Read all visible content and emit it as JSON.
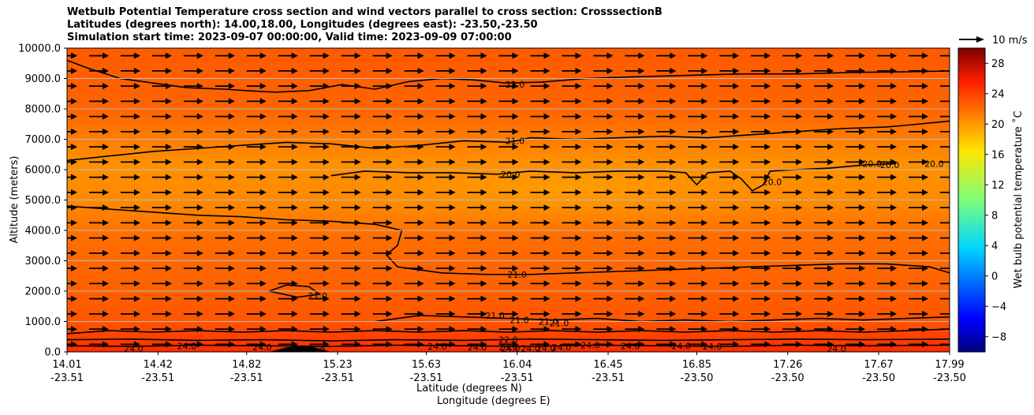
{
  "title_lines": [
    "Wetbulb Potential Temperature cross section and wind vectors parallel to cross section: CrosssectionB",
    "Latitudes (degrees north): 14.00,18.00, Longitudes (degrees east): -23.50,-23.50",
    "Simulation start time: 2023-09-07 00:00:00, Valid time: 2023-09-09 07:00:00"
  ],
  "chart_data": {
    "type": "heatmap",
    "subtype": "cross-section contour with quiver",
    "xlabel": "Latitude (degrees N)",
    "xlabel2": "Longitude (degrees E)",
    "ylabel": "Altitude (meters)",
    "ylim": [
      0,
      10000
    ],
    "xlim": [
      14.01,
      17.99
    ],
    "x_ticks": [
      {
        "lat": "14.01",
        "lon": "-23.51"
      },
      {
        "lat": "14.42",
        "lon": "-23.51"
      },
      {
        "lat": "14.82",
        "lon": "-23.51"
      },
      {
        "lat": "15.23",
        "lon": "-23.51"
      },
      {
        "lat": "15.63",
        "lon": "-23.51"
      },
      {
        "lat": "16.04",
        "lon": "-23.51"
      },
      {
        "lat": "16.45",
        "lon": "-23.51"
      },
      {
        "lat": "16.85",
        "lon": "-23.50"
      },
      {
        "lat": "17.26",
        "lon": "-23.50"
      },
      {
        "lat": "17.67",
        "lon": "-23.50"
      },
      {
        "lat": "17.99",
        "lon": "-23.50"
      }
    ],
    "y_ticks": [
      "0.0",
      "1000.0",
      "2000.0",
      "3000.0",
      "4000.0",
      "5000.0",
      "6000.0",
      "7000.0",
      "8000.0",
      "9000.0",
      "10000.0"
    ],
    "y_tick_values": [
      0,
      1000,
      2000,
      3000,
      4000,
      5000,
      6000,
      7000,
      8000,
      9000,
      10000
    ],
    "grid": "horizontal",
    "colorbar": {
      "label": "Wet bulb potential temperature ˚C",
      "ticks": [
        "28",
        "24",
        "20",
        "16",
        "12",
        "8",
        "4",
        "0",
        "−4",
        "−8"
      ],
      "tick_values": [
        28,
        24,
        20,
        16,
        12,
        8,
        4,
        0,
        -4,
        -8
      ],
      "range": [
        -10,
        30
      ],
      "colormap": "jet"
    },
    "quiver_key": {
      "label": "10 m/s",
      "value": 10
    },
    "wind": {
      "direction": "parallel, toward increasing latitude",
      "approx_speed_ms": 10
    },
    "field_regions": [
      {
        "description": "upper layer",
        "alt_range": [
          8000,
          10000
        ],
        "value": 22.5
      },
      {
        "description": "mid layer",
        "alt_range": [
          5000,
          7000
        ],
        "value": 20.5
      },
      {
        "description": "lower layer",
        "alt_range": [
          1000,
          3000
        ],
        "value": 21.5
      },
      {
        "description": "surface layer",
        "alt_range": [
          0,
          600
        ],
        "value": 25
      }
    ],
    "contour_labels": [
      {
        "text": "22.0",
        "lat": 16.03,
        "alt": 8800
      },
      {
        "text": "21.0",
        "lat": 16.03,
        "alt": 6950
      },
      {
        "text": "20.0",
        "lat": 16.01,
        "alt": 5850
      },
      {
        "text": "20.0",
        "lat": 17.19,
        "alt": 5600
      },
      {
        "text": "20.0",
        "lat": 17.64,
        "alt": 6200
      },
      {
        "text": "20.0",
        "lat": 17.72,
        "alt": 6150
      },
      {
        "text": "20.0",
        "lat": 17.92,
        "alt": 6200
      },
      {
        "text": "21.0",
        "lat": 16.04,
        "alt": 2550
      },
      {
        "text": "21.0",
        "lat": 15.14,
        "alt": 1850
      },
      {
        "text": "21.0",
        "lat": 15.94,
        "alt": 1200
      },
      {
        "text": "21.0",
        "lat": 16.05,
        "alt": 1050
      },
      {
        "text": "21.0",
        "lat": 16.18,
        "alt": 1000
      },
      {
        "text": "21.0",
        "lat": 16.23,
        "alt": 950
      },
      {
        "text": "22.0",
        "lat": 16.0,
        "alt": 400
      },
      {
        "text": "23.0",
        "lat": 16.0,
        "alt": 150
      },
      {
        "text": "24.0",
        "lat": 14.31,
        "alt": 100
      },
      {
        "text": "24.0",
        "lat": 14.55,
        "alt": 200
      },
      {
        "text": "24.0",
        "lat": 14.89,
        "alt": 150
      },
      {
        "text": "23.0",
        "lat": 15.13,
        "alt": 50
      },
      {
        "text": "24.0",
        "lat": 15.68,
        "alt": 180
      },
      {
        "text": "24.0",
        "lat": 15.86,
        "alt": 150
      },
      {
        "text": "24.0",
        "lat": 16.01,
        "alt": 120
      },
      {
        "text": "24.0",
        "lat": 16.1,
        "alt": 120
      },
      {
        "text": "24.0",
        "lat": 16.17,
        "alt": 120
      },
      {
        "text": "24.0",
        "lat": 16.24,
        "alt": 150
      },
      {
        "text": "24.0",
        "lat": 16.37,
        "alt": 220
      },
      {
        "text": "24.0",
        "lat": 16.55,
        "alt": 200
      },
      {
        "text": "24.0",
        "lat": 16.78,
        "alt": 200
      },
      {
        "text": "24.0",
        "lat": 16.92,
        "alt": 180
      },
      {
        "text": "24.0",
        "lat": 17.48,
        "alt": 100
      }
    ],
    "contours": [
      {
        "level": 22,
        "points": [
          [
            14.01,
            9600
          ],
          [
            14.1,
            9350
          ],
          [
            14.25,
            9000
          ],
          [
            14.4,
            8850
          ],
          [
            14.55,
            8700
          ],
          [
            14.72,
            8650
          ],
          [
            14.82,
            8600
          ],
          [
            14.95,
            8550
          ],
          [
            15.1,
            8600
          ],
          [
            15.25,
            8800
          ],
          [
            15.4,
            8650
          ],
          [
            15.55,
            8900
          ],
          [
            15.7,
            9000
          ],
          [
            15.85,
            8950
          ],
          [
            15.99,
            8850
          ],
          [
            16.15,
            8880
          ],
          [
            16.35,
            9000
          ],
          [
            16.55,
            9050
          ],
          [
            16.8,
            9100
          ],
          [
            17.05,
            9150
          ],
          [
            17.3,
            9150
          ],
          [
            17.55,
            9200
          ],
          [
            17.8,
            9220
          ],
          [
            17.99,
            9250
          ]
        ]
      },
      {
        "level": 21,
        "points": [
          [
            14.01,
            6300
          ],
          [
            14.2,
            6450
          ],
          [
            14.4,
            6600
          ],
          [
            14.6,
            6700
          ],
          [
            14.8,
            6800
          ],
          [
            15.0,
            6900
          ],
          [
            15.2,
            6850
          ],
          [
            15.4,
            6700
          ],
          [
            15.6,
            6800
          ],
          [
            15.8,
            6950
          ],
          [
            16.0,
            6900
          ],
          [
            16.1,
            7050
          ],
          [
            16.3,
            7000
          ],
          [
            16.5,
            7050
          ],
          [
            16.7,
            7100
          ],
          [
            16.9,
            7050
          ],
          [
            17.1,
            7150
          ],
          [
            17.3,
            7250
          ],
          [
            17.5,
            7350
          ],
          [
            17.7,
            7400
          ],
          [
            17.85,
            7500
          ],
          [
            17.99,
            7600
          ]
        ]
      },
      {
        "level": 20,
        "points": [
          [
            15.2,
            5800
          ],
          [
            15.35,
            5950
          ],
          [
            15.55,
            5900
          ],
          [
            15.75,
            5900
          ],
          [
            15.95,
            5850
          ],
          [
            16.1,
            5950
          ],
          [
            16.3,
            5900
          ],
          [
            16.5,
            5950
          ],
          [
            16.7,
            5950
          ],
          [
            16.8,
            5900
          ],
          [
            16.85,
            5500
          ],
          [
            16.9,
            5900
          ],
          [
            17.0,
            5950
          ],
          [
            17.05,
            5700
          ],
          [
            17.1,
            5300
          ],
          [
            17.15,
            5500
          ],
          [
            17.18,
            5950
          ],
          [
            17.3,
            6000
          ],
          [
            17.45,
            6050
          ],
          [
            17.6,
            6150
          ],
          [
            17.75,
            6200
          ]
        ]
      },
      {
        "level": 21,
        "points": [
          [
            14.01,
            4800
          ],
          [
            14.2,
            4700
          ],
          [
            14.4,
            4600
          ],
          [
            14.6,
            4500
          ],
          [
            14.8,
            4450
          ],
          [
            15.0,
            4350
          ],
          [
            15.2,
            4300
          ],
          [
            15.4,
            4200
          ],
          [
            15.52,
            4000
          ],
          [
            15.5,
            3500
          ],
          [
            15.45,
            3200
          ],
          [
            15.5,
            2800
          ],
          [
            15.7,
            2600
          ],
          [
            15.9,
            2550
          ],
          [
            16.1,
            2550
          ],
          [
            16.3,
            2600
          ],
          [
            16.5,
            2650
          ],
          [
            16.7,
            2700
          ],
          [
            16.9,
            2750
          ],
          [
            17.1,
            2800
          ],
          [
            17.3,
            2850
          ],
          [
            17.5,
            2900
          ],
          [
            17.7,
            2900
          ],
          [
            17.9,
            2800
          ],
          [
            17.99,
            2600
          ]
        ]
      },
      {
        "level": 21,
        "points": [
          [
            14.01,
            600
          ],
          [
            14.2,
            700
          ],
          [
            14.4,
            650
          ],
          [
            14.6,
            700
          ],
          [
            14.8,
            650
          ],
          [
            15.0,
            700
          ],
          [
            15.2,
            650
          ],
          [
            15.4,
            700
          ],
          [
            15.6,
            650
          ],
          [
            15.8,
            700
          ],
          [
            16.0,
            650
          ],
          [
            16.2,
            700
          ],
          [
            16.4,
            650
          ],
          [
            16.6,
            700
          ],
          [
            16.8,
            650
          ],
          [
            17.0,
            700
          ],
          [
            17.2,
            650
          ],
          [
            17.4,
            700
          ],
          [
            17.6,
            650
          ],
          [
            17.8,
            700
          ],
          [
            17.99,
            750
          ]
        ]
      },
      {
        "level": 21,
        "points": [
          [
            14.92,
            2000
          ],
          [
            15.0,
            2200
          ],
          [
            15.1,
            2150
          ],
          [
            15.15,
            1900
          ],
          [
            15.05,
            1800
          ],
          [
            14.92,
            2000
          ]
        ]
      },
      {
        "level": 21,
        "points": [
          [
            15.4,
            1000
          ],
          [
            15.6,
            1200
          ],
          [
            15.8,
            1150
          ],
          [
            16.0,
            1100
          ],
          [
            16.2,
            1050
          ],
          [
            16.4,
            1100
          ],
          [
            16.6,
            1000
          ],
          [
            16.8,
            1050
          ],
          [
            17.0,
            1000
          ],
          [
            17.2,
            1050
          ],
          [
            17.4,
            1100
          ],
          [
            17.6,
            1050
          ],
          [
            17.8,
            1100
          ],
          [
            17.99,
            1150
          ]
        ]
      },
      {
        "level": 22,
        "points": [
          [
            14.01,
            400
          ],
          [
            14.3,
            420
          ],
          [
            14.6,
            380
          ],
          [
            14.9,
            400
          ],
          [
            15.2,
            360
          ],
          [
            15.5,
            400
          ],
          [
            15.8,
            380
          ],
          [
            16.1,
            420
          ],
          [
            16.4,
            400
          ],
          [
            16.7,
            380
          ],
          [
            17.0,
            400
          ],
          [
            17.3,
            420
          ],
          [
            17.6,
            400
          ],
          [
            17.99,
            420
          ]
        ]
      },
      {
        "level": 24,
        "points": [
          [
            14.01,
            200
          ],
          [
            14.3,
            180
          ],
          [
            14.6,
            220
          ],
          [
            14.9,
            200
          ],
          [
            15.2,
            180
          ],
          [
            15.5,
            220
          ],
          [
            15.8,
            200
          ],
          [
            16.1,
            180
          ],
          [
            16.4,
            220
          ],
          [
            16.7,
            200
          ],
          [
            17.0,
            180
          ],
          [
            17.3,
            220
          ],
          [
            17.6,
            200
          ],
          [
            17.99,
            220
          ]
        ]
      }
    ],
    "terrain": [
      [
        14.92,
        0
      ],
      [
        15.0,
        150
      ],
      [
        15.1,
        200
      ],
      [
        15.15,
        100
      ],
      [
        15.2,
        0
      ]
    ]
  }
}
